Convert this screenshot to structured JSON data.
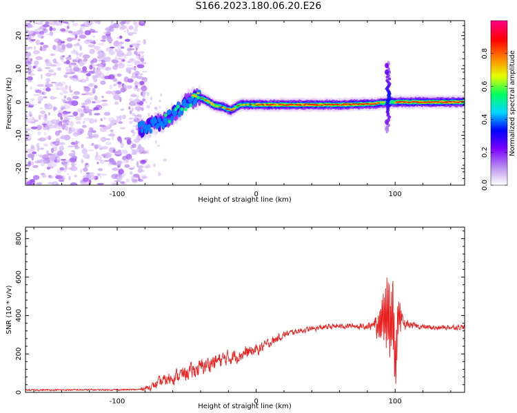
{
  "figure": {
    "title": "S166.2023.180.06.20.E26"
  },
  "chart_data": [
    {
      "type": "heatmap",
      "xlabel": "Height of straight line (km)",
      "ylabel": "Frequency (Hz)",
      "xlim": [
        -166,
        150
      ],
      "ylim": [
        -25,
        24.5
      ],
      "x_ticks": [
        -100,
        0,
        100
      ],
      "y_ticks": [
        -20,
        -10,
        0,
        10,
        20
      ],
      "grid": false,
      "colorbar": {
        "label": "Normalized spectral amplitude",
        "range": [
          0,
          1
        ],
        "ticks": [
          "0.0",
          "0.2",
          "0.4",
          "0.6",
          "0.8"
        ],
        "colors": [
          "#ffffff",
          "#b98af0",
          "#7a00ff",
          "#0000ff",
          "#00d8ff",
          "#00ff60",
          "#e8ff00",
          "#ff8000",
          "#ff0000",
          "#ff0080"
        ]
      },
      "features": {
        "noise_region_x": [
          -166,
          -82
        ],
        "ridge_points": [
          [
            -82,
            -8
          ],
          [
            -75,
            -7
          ],
          [
            -68,
            -6
          ],
          [
            -62,
            -4.5
          ],
          [
            -55,
            -2
          ],
          [
            -48,
            0.5
          ],
          [
            -42,
            1.5
          ],
          [
            -36,
            0.5
          ],
          [
            -30,
            -1
          ],
          [
            -24,
            -1.5
          ],
          [
            -18,
            -2.5
          ],
          [
            -12,
            -0.8
          ],
          [
            0,
            -0.8
          ],
          [
            30,
            -0.8
          ],
          [
            60,
            -0.8
          ],
          [
            85,
            -0.5
          ],
          [
            95,
            0
          ],
          [
            120,
            0
          ],
          [
            150,
            0
          ]
        ],
        "burst_x": 95,
        "burst_y_range": [
          -9,
          12
        ]
      }
    },
    {
      "type": "line",
      "xlabel": "Height of straight line (km)",
      "ylabel": "SNR (10 * v/v)",
      "xlim": [
        -166,
        150
      ],
      "ylim": [
        0,
        860
      ],
      "x_ticks": [
        -100,
        0,
        100
      ],
      "y_ticks": [
        0,
        200,
        400,
        600,
        800
      ],
      "grid": false,
      "series": [
        {
          "color": "#e8201e",
          "envelope_x": [
            -166,
            -85,
            -75,
            -70,
            -60,
            -50,
            -40,
            -30,
            -20,
            -10,
            0,
            10,
            20,
            30,
            40,
            50,
            60,
            70,
            80,
            85,
            88,
            92,
            95,
            97,
            98,
            100,
            102,
            105,
            110,
            120,
            130,
            140,
            150
          ],
          "envelope_y": [
            12,
            14,
            30,
            50,
            80,
            100,
            130,
            160,
            180,
            200,
            220,
            260,
            300,
            320,
            330,
            340,
            345,
            345,
            345,
            350,
            360,
            380,
            420,
            300,
            400,
            150,
            380,
            360,
            350,
            340,
            335,
            340,
            340
          ],
          "noise_amplitude": [
            6,
            6,
            25,
            40,
            50,
            55,
            60,
            60,
            55,
            50,
            40,
            35,
            25,
            20,
            20,
            20,
            20,
            20,
            25,
            40,
            160,
            230,
            400,
            300,
            450,
            300,
            200,
            60,
            25,
            20,
            20,
            20,
            20
          ]
        }
      ]
    }
  ]
}
